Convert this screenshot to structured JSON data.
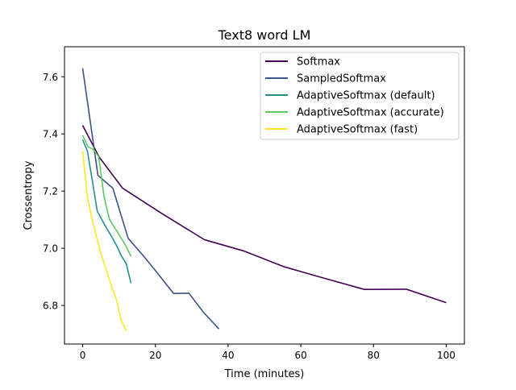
{
  "chart_data": {
    "type": "line",
    "title": "Text8 word LM",
    "xlabel": "Time (minutes)",
    "ylabel": "Crossentropy",
    "xlim": [
      -5,
      105
    ],
    "ylim": [
      6.665,
      7.705
    ],
    "xticks": [
      0,
      20,
      40,
      60,
      80,
      100
    ],
    "yticks": [
      6.8,
      7.0,
      7.2,
      7.4,
      7.6
    ],
    "ytick_labels": [
      "6.8",
      "7.0",
      "7.2",
      "7.4",
      "7.6"
    ],
    "grid": false,
    "legend_position": "top-right",
    "series": [
      {
        "name": "Softmax",
        "color": "#440154",
        "x": [
          0,
          4.5,
          11,
          22,
          33.5,
          44.5,
          55.5,
          66.5,
          77.5,
          89,
          100
        ],
        "y": [
          7.43,
          7.32,
          7.21,
          7.12,
          7.03,
          6.99,
          6.935,
          6.895,
          6.856,
          6.857,
          6.81
        ]
      },
      {
        "name": "SampledSoftmax",
        "color": "#3b528b",
        "x": [
          0,
          4.2,
          8.3,
          12.5,
          16.6,
          20.8,
          25,
          29.2,
          33.3,
          37.5
        ],
        "y": [
          7.63,
          7.255,
          7.21,
          7.035,
          6.975,
          6.91,
          6.842,
          6.843,
          6.775,
          6.718
        ]
      },
      {
        "name": "AdaptiveSoftmax (default)",
        "color": "#21918c",
        "x": [
          0,
          1.3,
          2.6,
          4,
          5.3,
          6.6,
          8,
          9.3,
          10.6,
          12,
          13.3
        ],
        "y": [
          7.38,
          7.34,
          7.24,
          7.13,
          7.1,
          7.07,
          7.04,
          7.01,
          6.975,
          6.945,
          6.878
        ]
      },
      {
        "name": "AdaptiveSoftmax (accurate)",
        "color": "#5ec962",
        "x": [
          0,
          1.5,
          3,
          4.4,
          5.9,
          7.4,
          8.9,
          10.4,
          11.8,
          13.3
        ],
        "y": [
          7.395,
          7.355,
          7.345,
          7.32,
          7.18,
          7.1,
          7.07,
          7.04,
          7.01,
          6.972
        ]
      },
      {
        "name": "AdaptiveSoftmax (fast)",
        "color": "#fde725",
        "x": [
          0,
          1.3,
          2.6,
          4,
          5.3,
          6.6,
          8,
          9.3,
          10.6,
          12
        ],
        "y": [
          7.34,
          7.18,
          7.1,
          7.03,
          6.97,
          6.92,
          6.865,
          6.82,
          6.748,
          6.71
        ]
      }
    ]
  }
}
